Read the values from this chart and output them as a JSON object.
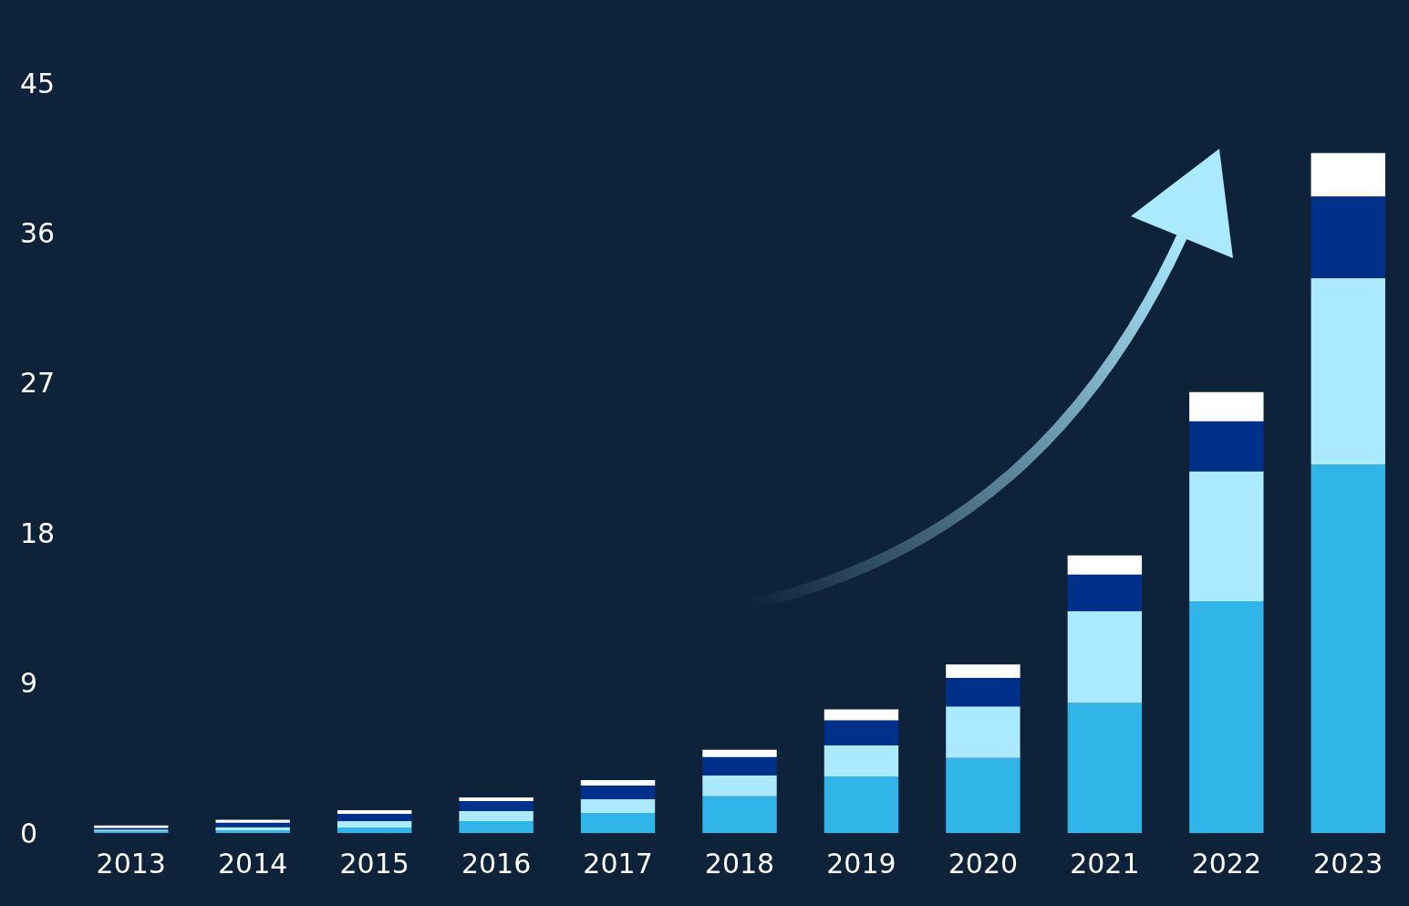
{
  "chart_data": {
    "type": "bar",
    "stacked": true,
    "categories": [
      "2013",
      "2014",
      "2015",
      "2016",
      "2017",
      "2018",
      "2019",
      "2020",
      "2021",
      "2022",
      "2023"
    ],
    "series": [
      {
        "color": "#31b5e8",
        "values": [
          0.1,
          0.15,
          0.33,
          0.71,
          1.2,
          2.2,
          3.4,
          4.5,
          7.8,
          13.9,
          22.1
        ]
      },
      {
        "color": "#abe9fe",
        "values": [
          0.1,
          0.2,
          0.38,
          0.6,
          0.82,
          1.26,
          1.86,
          3.1,
          5.5,
          7.8,
          11.2
        ]
      },
      {
        "color": "#00318a",
        "values": [
          0.1,
          0.27,
          0.44,
          0.6,
          0.82,
          1.1,
          1.5,
          1.7,
          2.2,
          3.0,
          4.9
        ]
      },
      {
        "color": "#ffffff",
        "values": [
          0.15,
          0.17,
          0.22,
          0.22,
          0.33,
          0.44,
          0.66,
          0.82,
          1.15,
          1.75,
          2.6
        ]
      }
    ],
    "ylim": [
      0,
      45
    ],
    "yticks": [
      0,
      9,
      18,
      27,
      36,
      45
    ],
    "grid": false
  }
}
